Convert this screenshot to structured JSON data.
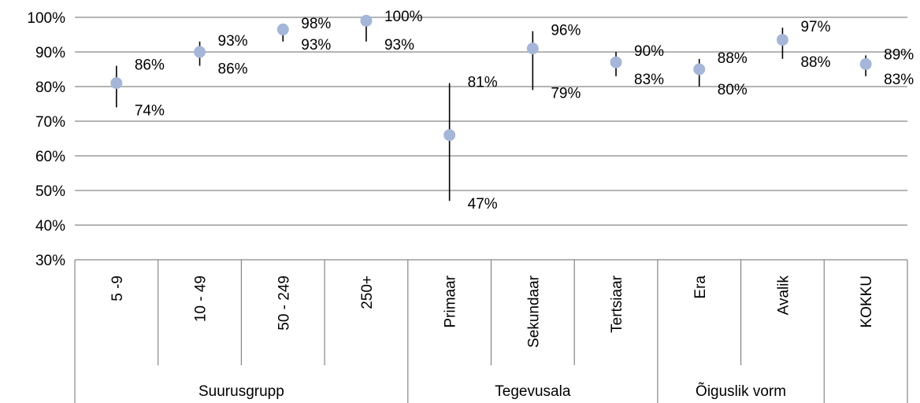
{
  "chart_data": {
    "type": "scatter",
    "title": "",
    "xlabel": "",
    "ylabel": "",
    "ylim": [
      30,
      100
    ],
    "yticks": [
      "30%",
      "40%",
      "50%",
      "60%",
      "70%",
      "80%",
      "90%",
      "100%"
    ],
    "grid": true,
    "legend": "none",
    "point_color": "#A5B6D8",
    "errorbar_color": "#000000",
    "gridline_color": "#868686",
    "groups": [
      {
        "name": "Suurusgrupp",
        "count": 4
      },
      {
        "name": "Tegevusala",
        "count": 3
      },
      {
        "name": "Õiguslik vorm",
        "count": 2
      },
      {
        "name": "",
        "count": 1
      }
    ],
    "categories": [
      "5 -9",
      "10 - 49",
      "50 - 249",
      "250+",
      "Primaar",
      "Sekundaar",
      "Tertsiaar",
      "Era",
      "Avalik",
      "KOKKU"
    ],
    "values": [
      81,
      90,
      96.5,
      99,
      66,
      91,
      87,
      85,
      93.5,
      86.5
    ],
    "upper": [
      86,
      93,
      98,
      100,
      81,
      96,
      90,
      88,
      97,
      89
    ],
    "lower": [
      74,
      86,
      93,
      93,
      47,
      79,
      83,
      80,
      88,
      83
    ],
    "upper_labels": [
      "86%",
      "93%",
      "98%",
      "100%",
      "81%",
      "96%",
      "90%",
      "88%",
      "97%",
      "89%"
    ],
    "lower_labels": [
      "74%",
      "86%",
      "93%",
      "93%",
      "47%",
      "79%",
      "83%",
      "80%",
      "88%",
      "83%"
    ]
  }
}
